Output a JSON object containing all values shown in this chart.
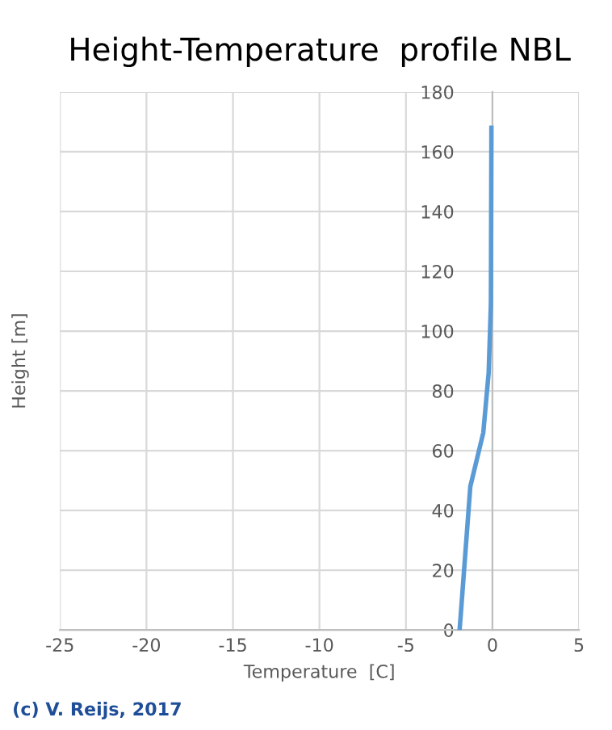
{
  "chart_data": {
    "type": "line",
    "title": "Height-Temperature  profile NBL",
    "xlabel": "Temperature  [C]",
    "ylabel": "Height [m]",
    "x": [
      -1.9,
      -1.84,
      -1.28,
      -0.53,
      -0.22,
      -0.09,
      -0.06
    ],
    "series": [
      {
        "color": "#5b9bd5",
        "values": [
          0,
          4.5,
          48,
          66,
          86,
          109,
          168
        ]
      }
    ],
    "xlim": [
      -25,
      5
    ],
    "xticks": [
      -25,
      -20,
      -15,
      -10,
      -5,
      0,
      5
    ],
    "ylim": [
      0,
      180
    ],
    "yticks": [
      0,
      20,
      40,
      60,
      80,
      100,
      120,
      140,
      160,
      180
    ],
    "grid": true,
    "marker": "none",
    "line_style": "solid",
    "annotations": [
      "(c) V. Reijs, 2017"
    ]
  }
}
